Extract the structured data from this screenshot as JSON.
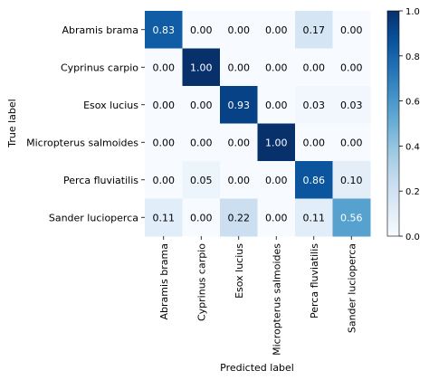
{
  "chart_data": {
    "type": "heatmap",
    "title": "",
    "xlabel": "Predicted label",
    "ylabel": "True label",
    "x_categories": [
      "Abramis brama",
      "Cyprinus carpio",
      "Esox lucius",
      "Micropterus salmoides",
      "Perca fluviatilis",
      "Sander lucioperca"
    ],
    "y_categories": [
      "Abramis brama",
      "Cyprinus carpio",
      "Esox lucius",
      "Micropterus salmoides",
      "Perca fluviatilis",
      "Sander lucioperca"
    ],
    "values": [
      [
        0.83,
        0.0,
        0.0,
        0.0,
        0.17,
        0.0
      ],
      [
        0.0,
        1.0,
        0.0,
        0.0,
        0.0,
        0.0
      ],
      [
        0.0,
        0.0,
        0.93,
        0.0,
        0.03,
        0.03
      ],
      [
        0.0,
        0.0,
        0.0,
        1.0,
        0.0,
        0.0
      ],
      [
        0.0,
        0.05,
        0.0,
        0.0,
        0.86,
        0.1
      ],
      [
        0.11,
        0.0,
        0.22,
        0.0,
        0.11,
        0.56
      ]
    ],
    "value_format": "0.00",
    "colormap": "Blues",
    "colorbar": {
      "range": [
        0.0,
        1.0
      ],
      "ticks": [
        0.0,
        0.2,
        0.4,
        0.6,
        0.8,
        1.0
      ],
      "tick_labels": [
        "0.0",
        "0.2",
        "0.4",
        "0.6",
        "0.8",
        "1.0"
      ]
    },
    "colors": {
      "low": "#f7fbff",
      "high": "#08306b"
    }
  }
}
